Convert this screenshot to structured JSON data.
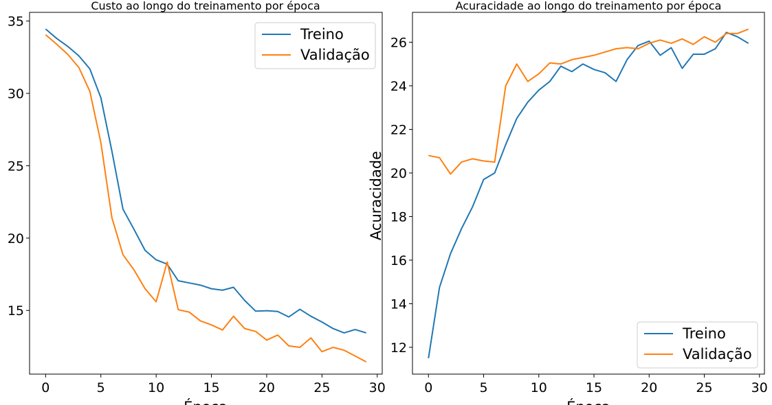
{
  "chart_data": [
    {
      "type": "line",
      "title": "Custo ao longo do treinamento por época",
      "xlabel": "Época",
      "ylabel": "",
      "xlim": [
        -1.45,
        30.45
      ],
      "ylim": [
        10.6,
        35.6
      ],
      "xticks": [
        0,
        5,
        10,
        15,
        20,
        25,
        30
      ],
      "yticks": [
        15,
        20,
        25,
        30,
        35
      ],
      "grid": false,
      "legend_position": "top-right",
      "x": [
        0,
        1,
        2,
        3,
        4,
        5,
        6,
        7,
        8,
        9,
        10,
        11,
        12,
        13,
        14,
        15,
        16,
        17,
        18,
        19,
        20,
        21,
        22,
        23,
        24,
        25,
        26,
        27,
        28,
        29
      ],
      "series": [
        {
          "name": "Treino",
          "color": "#1f77b4",
          "values": [
            34.45,
            33.8,
            33.25,
            32.6,
            31.7,
            29.7,
            26.0,
            22.0,
            20.6,
            19.15,
            18.5,
            18.2,
            17.05,
            16.9,
            16.75,
            16.5,
            16.4,
            16.6,
            15.7,
            14.95,
            14.98,
            14.93,
            14.55,
            15.08,
            14.6,
            14.2,
            13.75,
            13.45,
            13.68,
            13.45
          ]
        },
        {
          "name": "Validação",
          "color": "#ff7f0e",
          "values": [
            34.05,
            33.4,
            32.7,
            31.8,
            30.15,
            26.6,
            21.4,
            18.85,
            17.8,
            16.5,
            15.6,
            18.35,
            15.05,
            14.88,
            14.28,
            14.0,
            13.65,
            14.6,
            13.75,
            13.55,
            12.95,
            13.3,
            12.55,
            12.45,
            13.1,
            12.15,
            12.45,
            12.25,
            11.85,
            11.45
          ]
        }
      ]
    },
    {
      "type": "line",
      "title": "Acuracidade ao longo do treinamento por época",
      "xlabel": "Época",
      "ylabel": "Acuracidade",
      "xlim": [
        -1.45,
        30.45
      ],
      "ylim": [
        10.77,
        27.37
      ],
      "xticks": [
        0,
        5,
        10,
        15,
        20,
        25,
        30
      ],
      "yticks": [
        12,
        14,
        16,
        18,
        20,
        22,
        24,
        26
      ],
      "grid": false,
      "legend_position": "bottom-right",
      "x": [
        0,
        1,
        2,
        3,
        4,
        5,
        6,
        7,
        8,
        9,
        10,
        11,
        12,
        13,
        14,
        15,
        16,
        17,
        18,
        19,
        20,
        21,
        22,
        23,
        24,
        25,
        26,
        27,
        28,
        29
      ],
      "series": [
        {
          "name": "Treino",
          "color": "#1f77b4",
          "values": [
            11.5,
            14.75,
            16.3,
            17.45,
            18.45,
            19.7,
            20.0,
            21.3,
            22.5,
            23.25,
            23.8,
            24.2,
            24.9,
            24.65,
            25.0,
            24.75,
            24.6,
            24.2,
            25.2,
            25.85,
            26.05,
            25.4,
            25.75,
            24.8,
            25.45,
            25.45,
            25.7,
            26.45,
            26.25,
            25.95
          ]
        },
        {
          "name": "Validação",
          "color": "#ff7f0e",
          "values": [
            20.8,
            20.7,
            19.95,
            20.5,
            20.65,
            20.55,
            20.5,
            24.0,
            25.0,
            24.2,
            24.55,
            25.05,
            25.0,
            25.2,
            25.3,
            25.4,
            25.55,
            25.7,
            25.75,
            25.7,
            25.95,
            26.1,
            25.95,
            26.15,
            25.9,
            26.25,
            26.0,
            26.4,
            26.4,
            26.6
          ]
        }
      ]
    }
  ]
}
